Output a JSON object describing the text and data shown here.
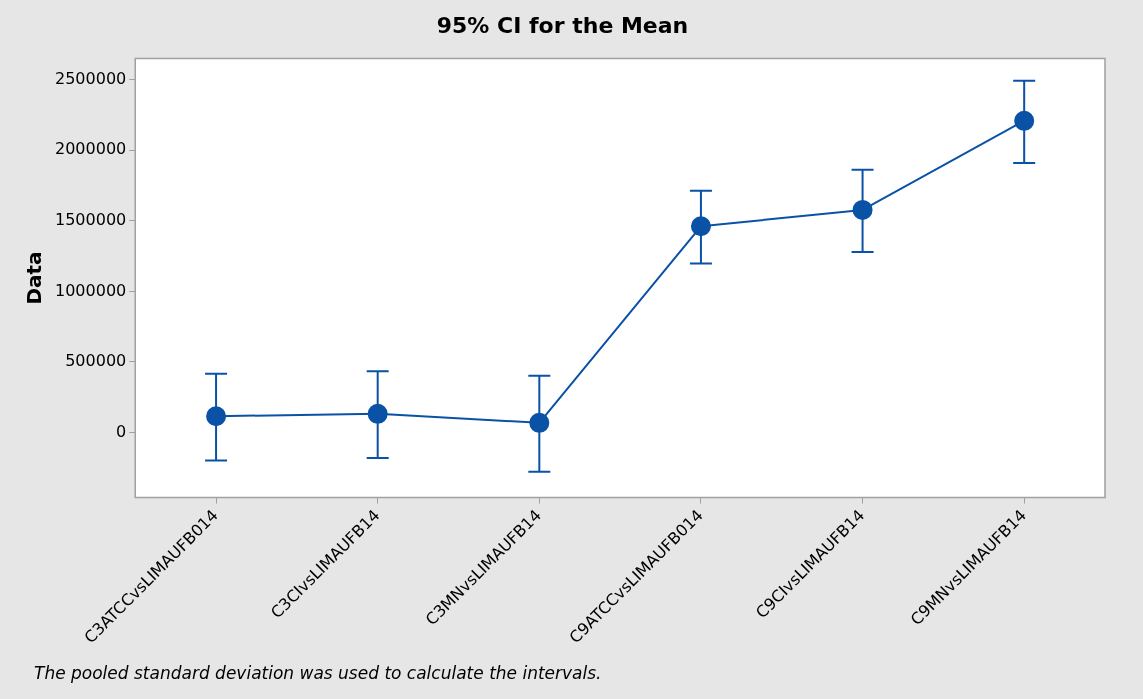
{
  "chart_data": {
    "type": "line",
    "title": "95% CI for the Mean",
    "ylabel": "Data",
    "categories": [
      "C3ATCCvsLIMAUFB014",
      "C3CIvsLIMAUFB14",
      "C3MNvsLIMAUFB14",
      "C9ATCCvsLIMAUFB014",
      "C9CIvsLIMAUFB14",
      "C9MNvsLIMAUFB14"
    ],
    "series": [
      {
        "color": "#0a52a5",
        "values": [
          116000,
          133000,
          69000,
          1461000,
          1577000,
          2208000
        ],
        "errors": [
          [
            -197000,
            416000
          ],
          [
            -180000,
            434000
          ],
          [
            -278000,
            402000
          ],
          [
            1198000,
            1713000
          ],
          [
            1279000,
            1861000
          ],
          [
            1910000,
            2492000
          ]
        ]
      }
    ],
    "ylim": [
      -460000,
      2650000
    ],
    "yticks": [
      0,
      500000,
      1000000,
      1500000,
      2000000,
      2500000
    ],
    "legend": false,
    "marker": "circle",
    "line_style": "solid",
    "annotations": [
      "The pooled standard deviation was used to calculate the intervals."
    ]
  }
}
